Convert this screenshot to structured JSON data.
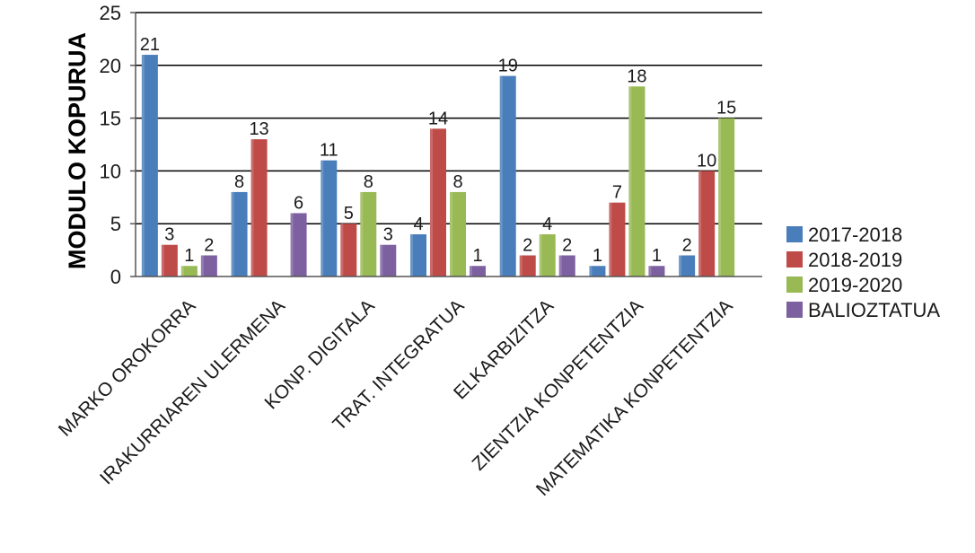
{
  "chart_data": {
    "type": "bar",
    "title": "",
    "xlabel": "",
    "ylabel": "MODULO KOPURUA",
    "ylim": [
      0,
      25
    ],
    "yticks": [
      0,
      5,
      10,
      15,
      20,
      25
    ],
    "grid": true,
    "legend_position": "right",
    "categories": [
      "MARKO OROKORRA",
      "IRAKURRIAREN ULERMENA",
      "KONP. DIGITALA",
      "TRAT. INTEGRATUA",
      "ELKARBIZITZA",
      "ZIENTZIA KONPETENTZIA",
      "MATEMATIKA KONPETENTZIA"
    ],
    "series": [
      {
        "name": "2017-2018",
        "color": "#4a7ebb",
        "values": [
          21,
          8,
          11,
          4,
          19,
          1,
          2
        ]
      },
      {
        "name": "2018-2019",
        "color": "#be4b48",
        "values": [
          3,
          13,
          5,
          14,
          2,
          7,
          10
        ]
      },
      {
        "name": "2019-2020",
        "color": "#98b954",
        "values": [
          1,
          null,
          8,
          8,
          4,
          18,
          15
        ]
      },
      {
        "name": "BALIOZTATUA",
        "color": "#7d60a0",
        "values": [
          2,
          6,
          3,
          1,
          2,
          1,
          null
        ]
      }
    ]
  }
}
